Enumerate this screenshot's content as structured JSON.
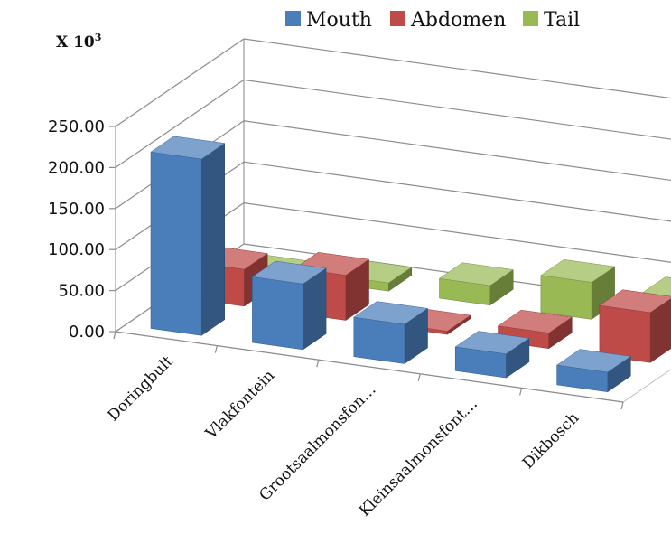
{
  "chart_data": {
    "type": "bar",
    "variant": "3d-clustered-column",
    "y_unit_label": "X 10",
    "y_unit_exponent": "3",
    "categories": [
      "Doringbult",
      "Vlakfontein",
      "Grootsaalmonsfon…",
      "Kleinsaalmonsfont…",
      "Dikbosch"
    ],
    "series": [
      {
        "name": "Mouth",
        "color": "#4a7ebb",
        "values": [
          215,
          80,
          48,
          29,
          24
        ]
      },
      {
        "name": "Abdomen",
        "color": "#be4b48",
        "values": [
          45,
          55,
          4,
          19,
          61
        ]
      },
      {
        "name": "Tail",
        "color": "#98b954",
        "values": [
          0,
          10,
          24,
          45,
          41
        ]
      }
    ],
    "ylim": [
      0,
      250
    ],
    "yticks": [
      "0.00",
      "50.00",
      "100.00",
      "150.00",
      "200.00",
      "250.00"
    ],
    "grid": true,
    "legend_position": "top"
  }
}
